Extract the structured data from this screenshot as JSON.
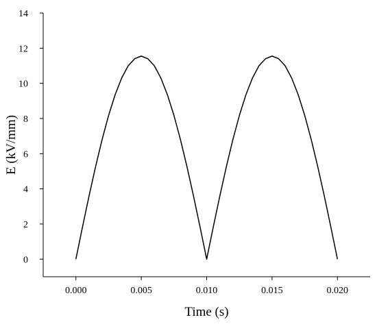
{
  "chart_data": {
    "type": "line",
    "title": "",
    "xlabel": "Time (s)",
    "ylabel": "E (kV/mm)",
    "xlim": [
      -0.0025,
      0.0225
    ],
    "ylim": [
      -1,
      14
    ],
    "xticks": [
      0.0,
      0.005,
      0.01,
      0.015,
      0.02
    ],
    "xtick_labels": [
      "0.000",
      "0.005",
      "0.010",
      "0.015",
      "0.020"
    ],
    "yticks": [
      0,
      2,
      4,
      6,
      8,
      10,
      12,
      14
    ],
    "ytick_labels": [
      "0",
      "2",
      "4",
      "6",
      "8",
      "10",
      "12",
      "14"
    ],
    "grid": false,
    "legend": "none",
    "series": [
      {
        "color": "#000000",
        "x": [
          0.0,
          0.0005,
          0.001,
          0.0015,
          0.002,
          0.0025,
          0.003,
          0.0035,
          0.004,
          0.0045,
          0.005,
          0.0055,
          0.006,
          0.0065,
          0.007,
          0.0075,
          0.008,
          0.0085,
          0.009,
          0.0095,
          0.01,
          0.0105,
          0.011,
          0.0115,
          0.012,
          0.0125,
          0.013,
          0.0135,
          0.014,
          0.0145,
          0.015,
          0.0155,
          0.016,
          0.0165,
          0.017,
          0.0175,
          0.018,
          0.0185,
          0.019,
          0.0195,
          0.02
        ],
        "y": [
          0.0,
          1.81,
          3.57,
          5.24,
          6.79,
          8.17,
          9.35,
          10.3,
          11.0,
          11.4,
          11.55,
          11.4,
          11.0,
          10.3,
          9.35,
          8.17,
          6.79,
          5.24,
          3.57,
          1.81,
          0.0,
          1.81,
          3.57,
          5.24,
          6.79,
          8.17,
          9.35,
          10.3,
          11.0,
          11.4,
          11.55,
          11.4,
          11.0,
          10.3,
          9.35,
          8.17,
          6.79,
          5.24,
          3.57,
          1.81,
          0.0
        ]
      }
    ]
  }
}
